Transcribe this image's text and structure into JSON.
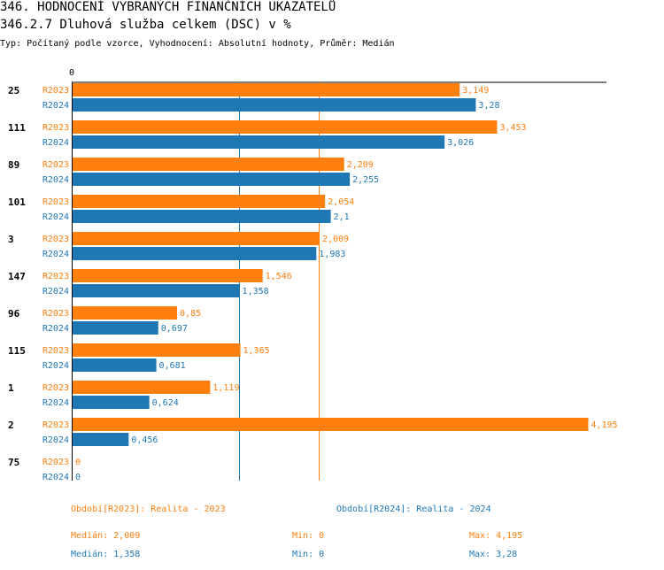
{
  "header": {
    "title": "346. HODNOCENÍ VYBRANÝCH FINANČNÍCH UKAZATELŮ",
    "subtitle": "346.2.7 Dluhová služba celkem (DSC) v %",
    "type_line": "Typ: Počítaný podle vzorce, Vyhodnocení: Absolutní hodnoty, Průměr: Medián"
  },
  "chart_data": {
    "type": "bar",
    "orientation": "horizontal",
    "axis_zero_label": "0",
    "xlim": [
      0,
      4.35
    ],
    "categories": [
      "25",
      "111",
      "89",
      "101",
      "3",
      "147",
      "96",
      "115",
      "1",
      "2",
      "75"
    ],
    "series": [
      {
        "name": "R2023",
        "color": "#ff7f0e",
        "values": [
          3.149,
          3.453,
          2.209,
          2.054,
          2.009,
          1.546,
          0.85,
          1.365,
          1.119,
          4.195,
          0
        ],
        "labels": [
          "3,149",
          "3,453",
          "2,209",
          "2,054",
          "2,009",
          "1,546",
          "0,85",
          "1,365",
          "1,119",
          "4,195",
          "0"
        ]
      },
      {
        "name": "R2024",
        "color": "#1f77b4",
        "values": [
          3.28,
          3.026,
          2.255,
          2.1,
          1.983,
          1.358,
          0.697,
          0.681,
          0.624,
          0.456,
          0
        ],
        "labels": [
          "3,28",
          "3,026",
          "2,255",
          "2,1",
          "1,983",
          "1,358",
          "0,697",
          "0,681",
          "0,624",
          "0,456",
          "0"
        ]
      }
    ],
    "median_lines": [
      {
        "series": "R2023",
        "value": 2.009,
        "color": "#ff7f0e"
      },
      {
        "series": "R2024",
        "value": 1.358,
        "color": "#1f77b4"
      }
    ]
  },
  "legend": {
    "r2023": "Období[R2023]: Realita - 2023",
    "r2024": "Období[R2024]: Realita - 2024"
  },
  "stats": {
    "r2023": {
      "median": "Medián: 2,009",
      "min": "Min: 0",
      "max": "Max: 4,195"
    },
    "r2024": {
      "median": "Medián: 1,358",
      "min": "Min: 0",
      "max": "Max: 3,28"
    }
  }
}
